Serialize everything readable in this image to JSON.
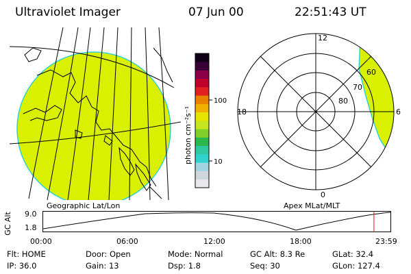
{
  "header": {
    "title": "Ultraviolet Imager",
    "date": "07 Jun 00",
    "time": "22:51:43 UT"
  },
  "colorbar": {
    "unit_label": "photon cm⁻²s⁻¹",
    "ticks": [
      "100",
      "10"
    ],
    "scale": "log",
    "colors": [
      "#e8e8ec",
      "#cfd6dc",
      "#9fd4e0",
      "#33d0d0",
      "#2fc8a0",
      "#2ab84a",
      "#7fd02a",
      "#c8e61e",
      "#e6e600",
      "#f0b000",
      "#e88000",
      "#e02020",
      "#c0002a",
      "#8a0048",
      "#3a0038",
      "#10001a"
    ]
  },
  "left_panel": {
    "caption": "Geographic Lat/Lon",
    "fill_color": "#d9f000"
  },
  "right_panel": {
    "caption": "Apex MLat/MLT",
    "mlt_labels": [
      "12",
      "18",
      "6",
      "0"
    ],
    "lat_labels": [
      "60",
      "70",
      "80"
    ],
    "fill_color": "#d9f000"
  },
  "timeline": {
    "axis_label": "GC Alt",
    "y_ticks": [
      "9.0",
      "1.8"
    ],
    "x_ticks": [
      "00:00",
      "06:00",
      "12:00",
      "18:00",
      "23:59"
    ],
    "current_time_marker_hours": 22.86,
    "marker_color": "#ff0000"
  },
  "status": {
    "row1": [
      {
        "label": "Flt:",
        "value": "HOME"
      },
      {
        "label": "Door:",
        "value": "Open"
      },
      {
        "label": "Mode:",
        "value": "Normal"
      },
      {
        "label": "GC Alt:",
        "value": "8.3 Re"
      },
      {
        "label": "GLat:",
        "value": "32.4"
      }
    ],
    "row2": [
      {
        "label": "IP:",
        "value": "36.0"
      },
      {
        "label": "Gain:",
        "value": "13"
      },
      {
        "label": "Dsp:",
        "value": "1.8"
      },
      {
        "label": "Seq:",
        "value": "30"
      },
      {
        "label": "GLon:",
        "value": "127.4"
      }
    ]
  }
}
